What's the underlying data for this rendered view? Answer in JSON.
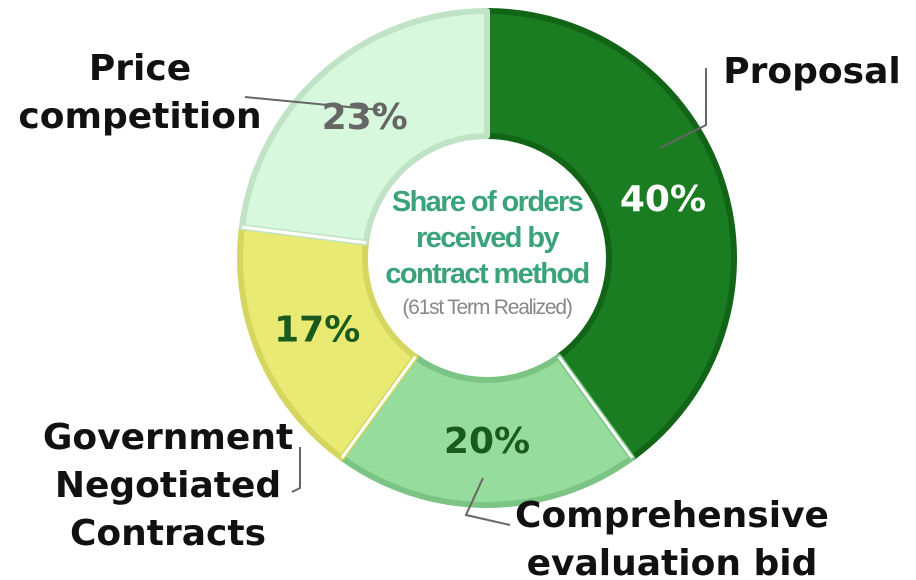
{
  "chart_data": {
    "type": "pie",
    "title": "Share of orders received by contract method",
    "subtitle": "(61st Term Realized)",
    "categories": [
      "Proposal",
      "Comprehensive evaluation bid",
      "Government Negotiated Contracts",
      "Price competition"
    ],
    "values": [
      40,
      20,
      17,
      23
    ],
    "value_labels": [
      "40%",
      "20%",
      "17%",
      "23%"
    ],
    "colors": [
      "#1a7d22",
      "#96dc9c",
      "#e8ea74",
      "#d8f8de"
    ],
    "edge_colors": [
      "#126416",
      "#7cc484",
      "#d4d660",
      "#bfe3c4"
    ],
    "value_label_colors": [
      "#ffffff",
      "#1a5a1e",
      "#1a5a1e",
      "#666666"
    ]
  }
}
